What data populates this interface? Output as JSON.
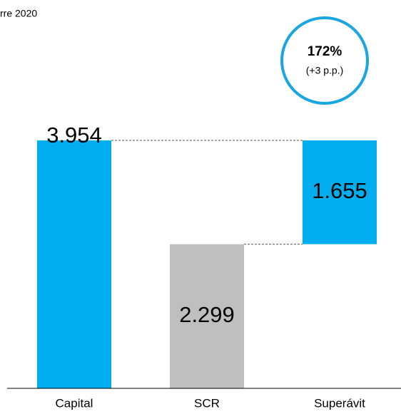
{
  "chart_data": {
    "type": "waterfall",
    "title": "rre 2020",
    "categories": [
      "Capital",
      "SCR",
      "Superávit"
    ],
    "values": [
      3954,
      2299,
      1655
    ],
    "value_labels": [
      "3.954",
      "2.299",
      "1.655"
    ],
    "colors": [
      "#00aeef",
      "#bfbfbf",
      "#00aeef"
    ],
    "ylim": [
      0,
      4500
    ],
    "annotation": {
      "title": "172%",
      "subtitle": "(+3 p.p.)"
    }
  }
}
